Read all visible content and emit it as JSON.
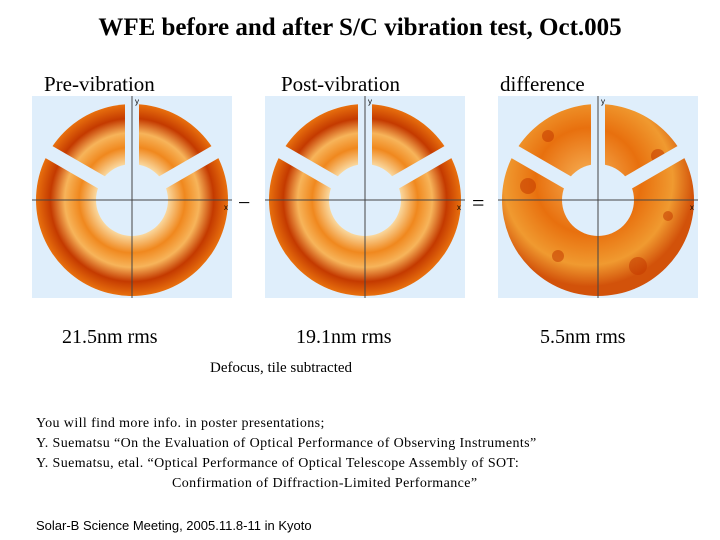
{
  "title": "WFE before and after S/C vibration test,  Oct.005",
  "panels": [
    {
      "label": "Pre-vibration",
      "rms": "21.5nm rms",
      "axis_x": "x",
      "axis_y": "y"
    },
    {
      "label": "Post-vibration",
      "rms": "19.1nm rms",
      "axis_x": "x",
      "axis_y": "y"
    },
    {
      "label": "difference",
      "rms": "5.5nm rms",
      "axis_x": "x",
      "axis_y": "y"
    }
  ],
  "operators": {
    "minus": "−",
    "equals": "="
  },
  "note": "Defocus, tile subtracted",
  "references": [
    "You will find more info. in poster presentations;",
    "Y. Suematsu  “On the Evaluation of Optical Performance of Observing Instruments”",
    "Y. Suematsu, etal.  “Optical Performance of Optical Telescope Assembly of SOT:",
    "Confirmation of Diffraction-Limited Performance”"
  ],
  "footer": "Solar-B Science Meeting, 2005.11.8-11 in Kyoto",
  "colors": {
    "panel_bg": "#dfeefb",
    "map_dark": "#c43a00",
    "map_mid": "#e8700e",
    "map_light": "#f7b45a",
    "map_pale": "#fbe3b0"
  }
}
